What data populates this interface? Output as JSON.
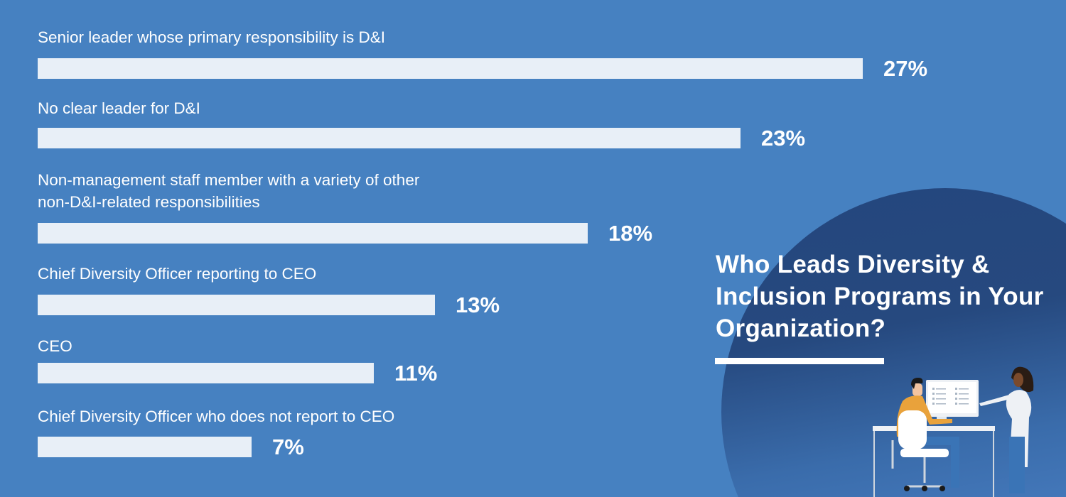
{
  "chart_data": {
    "type": "bar",
    "orientation": "horizontal",
    "title": "Who Leads Diversity & Inclusion Programs in Your Organization?",
    "categories": [
      "Senior leader whose primary responsibility is D&I",
      "No clear leader for D&I",
      "Non-management staff member with a variety of other non-D&I-related responsibilities",
      "Chief Diversity Officer reporting to CEO",
      "CEO",
      "Chief Diversity Officer who does not report to CEO"
    ],
    "category_lines": [
      [
        "Senior leader whose primary responsibility is D&I"
      ],
      [
        "No clear leader for D&I"
      ],
      [
        "Non-management staff member with a variety of other",
        "non-D&I-related responsibilities"
      ],
      [
        "Chief Diversity Officer reporting to CEO"
      ],
      [
        "CEO"
      ],
      [
        "Chief Diversity Officer who does not report to CEO"
      ]
    ],
    "values": [
      27,
      23,
      18,
      13,
      11,
      7
    ],
    "value_labels": [
      "27%",
      "23%",
      "18%",
      "13%",
      "11%",
      "7%"
    ],
    "unit": "%",
    "grid": false,
    "colors": {
      "background": "#4681c1",
      "bar": "#e8eff7",
      "circle": "#24467d",
      "text": "#ffffff"
    }
  }
}
